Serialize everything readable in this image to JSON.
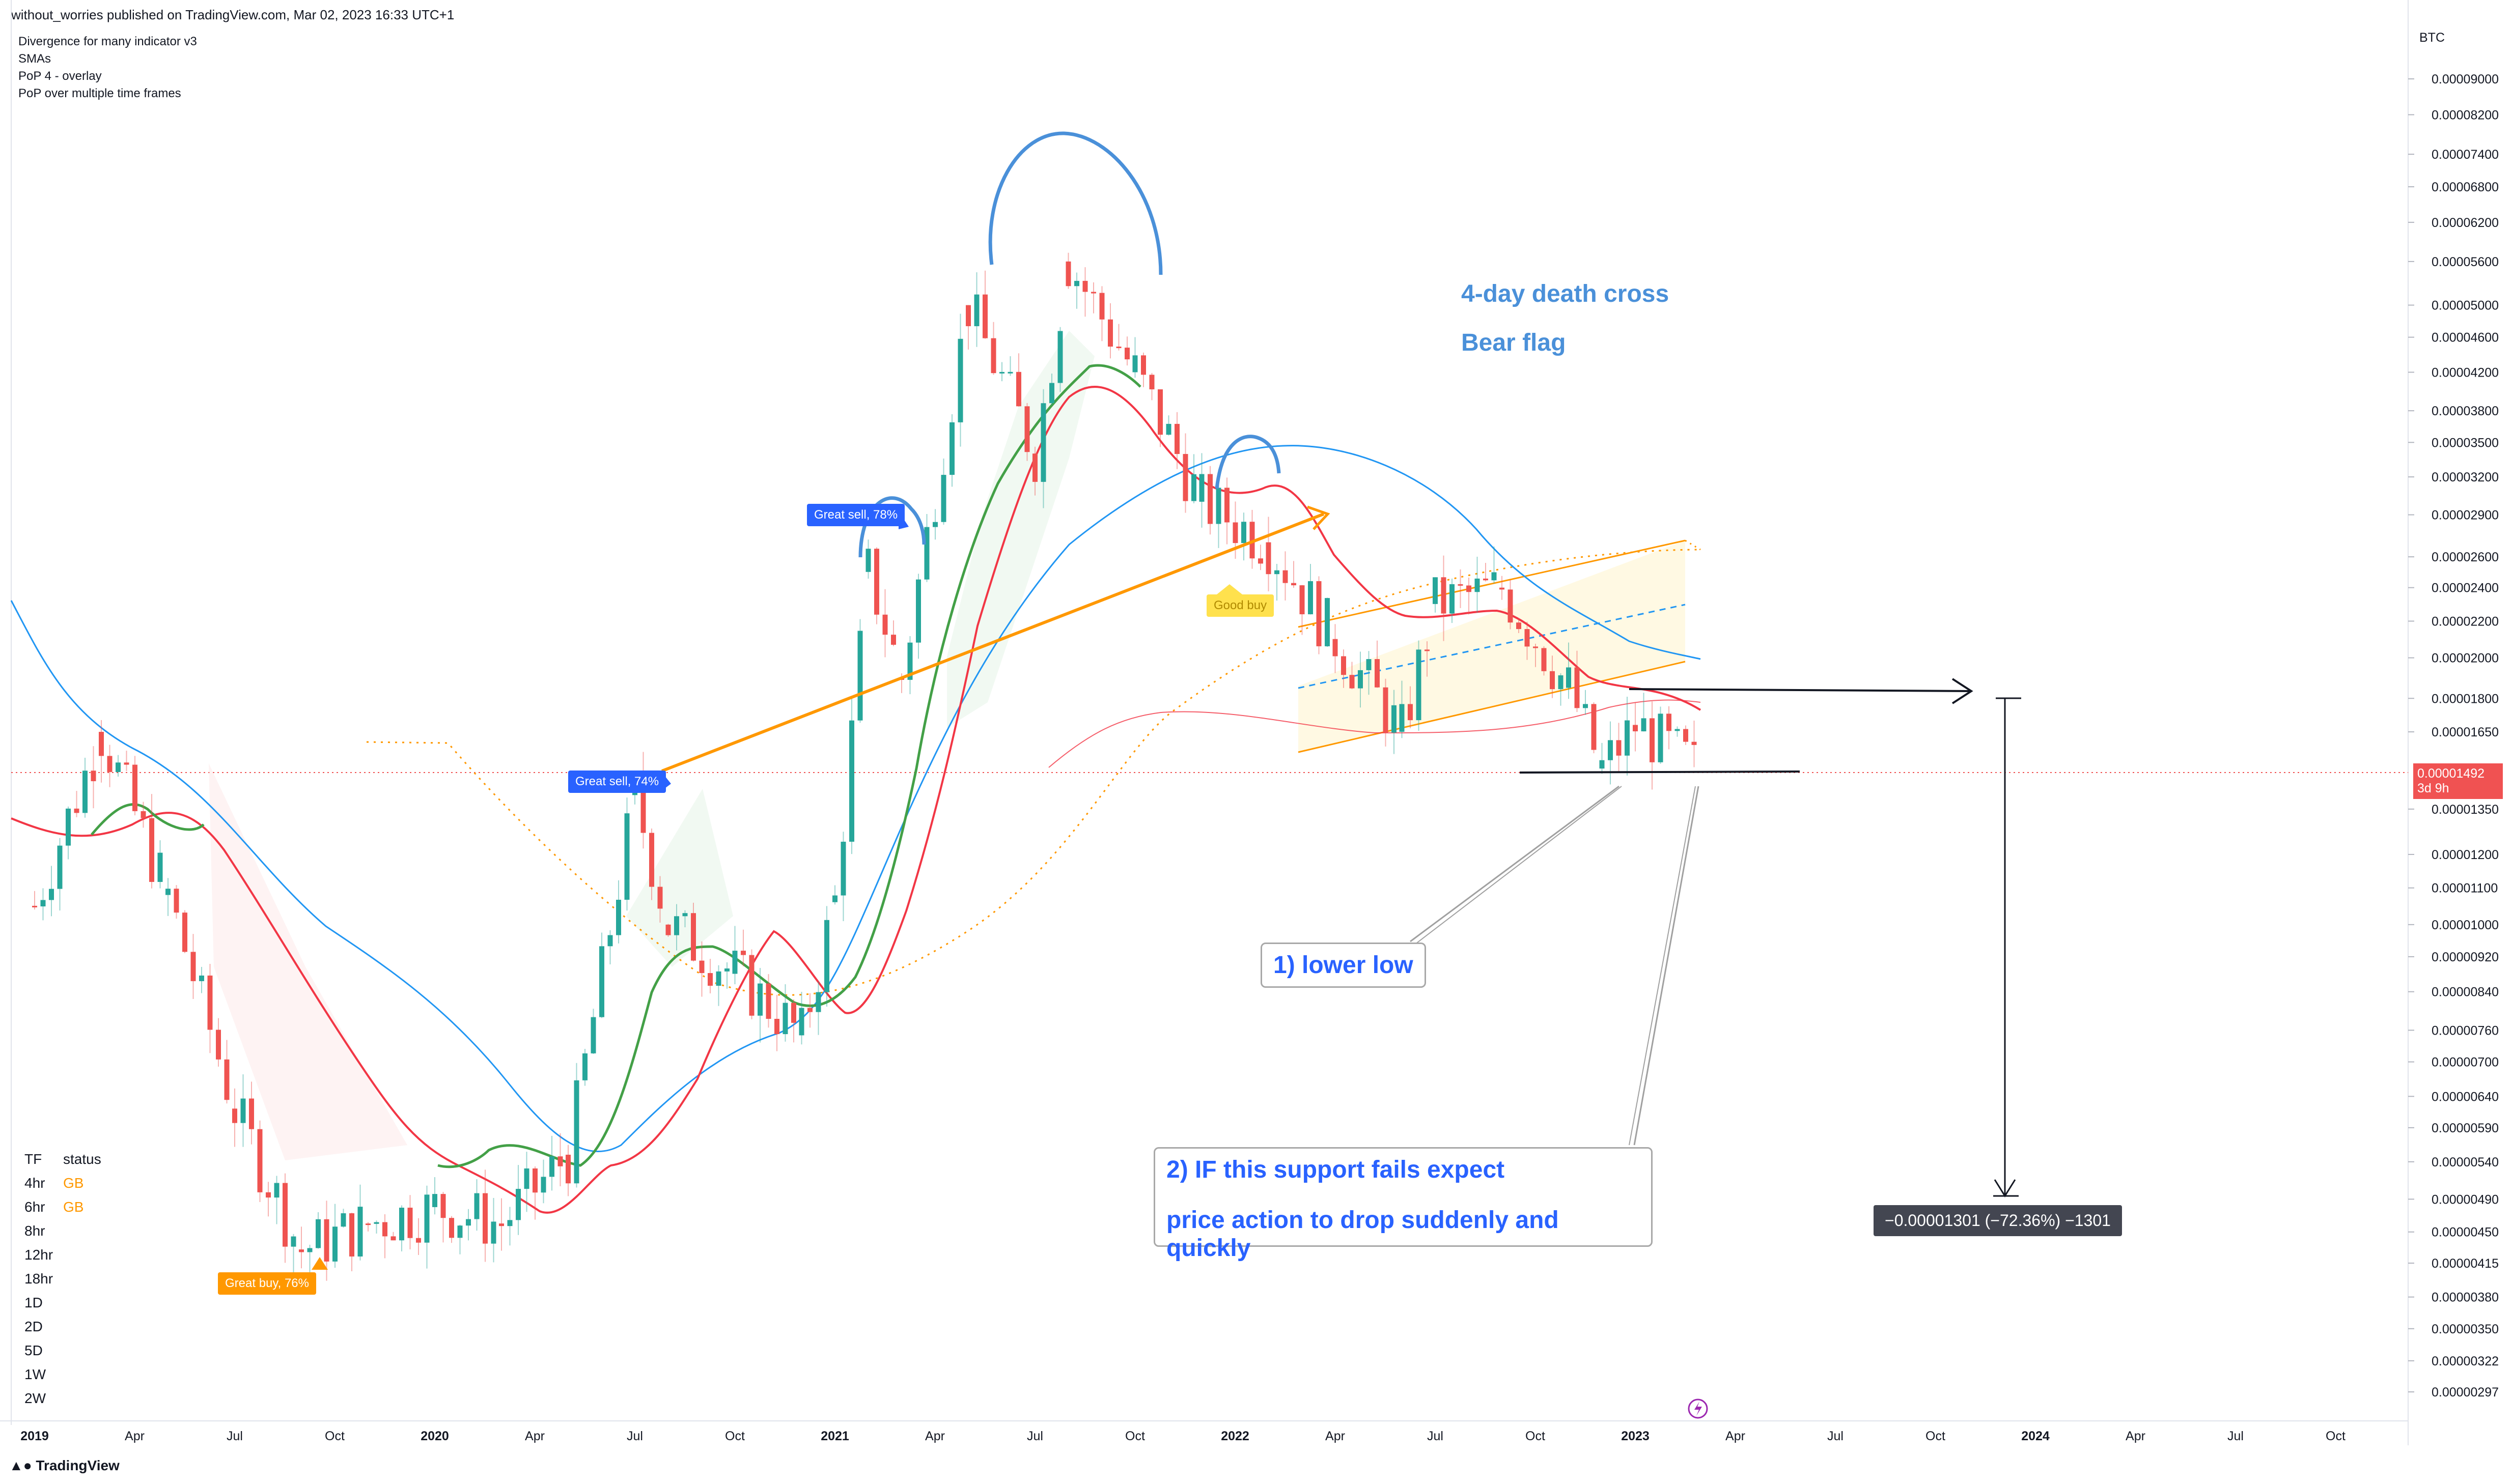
{
  "header": {
    "publisher_line": "without_worries published on TradingView.com, Mar 02, 2023 16:33 UTC+1"
  },
  "indicators": [
    "Divergence for many indicator v3",
    "SMAs",
    "PoP 4 - overlay",
    "PoP over multiple time frames"
  ],
  "price_axis": {
    "currency": "BTC",
    "ticks": [
      "0.00009000",
      "0.00008200",
      "0.00007400",
      "0.00006800",
      "0.00006200",
      "0.00005600",
      "0.00005000",
      "0.00004600",
      "0.00004200",
      "0.00003800",
      "0.00003500",
      "0.00003200",
      "0.00002900",
      "0.00002600",
      "0.00002400",
      "0.00002200",
      "0.00002000",
      "0.00001800",
      "0.00001650",
      "0.00001350",
      "0.00001200",
      "0.00001100",
      "0.00001000",
      "0.00000920",
      "0.00000840",
      "0.00000760",
      "0.00000700",
      "0.00000640",
      "0.00000590",
      "0.00000540",
      "0.00000490",
      "0.00000450",
      "0.00000415",
      "0.00000380",
      "0.00000350",
      "0.00000322",
      "0.00000297"
    ],
    "current_price": "0.00001492",
    "countdown": "3d 9h"
  },
  "time_axis": {
    "labels": [
      {
        "text": "2019",
        "bold": true
      },
      {
        "text": "Apr",
        "bold": false
      },
      {
        "text": "Jul",
        "bold": false
      },
      {
        "text": "Oct",
        "bold": false
      },
      {
        "text": "2020",
        "bold": true
      },
      {
        "text": "Apr",
        "bold": false
      },
      {
        "text": "Jul",
        "bold": false
      },
      {
        "text": "Oct",
        "bold": false
      },
      {
        "text": "2021",
        "bold": true
      },
      {
        "text": "Apr",
        "bold": false
      },
      {
        "text": "Jul",
        "bold": false
      },
      {
        "text": "Oct",
        "bold": false
      },
      {
        "text": "2022",
        "bold": true
      },
      {
        "text": "Apr",
        "bold": false
      },
      {
        "text": "Jul",
        "bold": false
      },
      {
        "text": "Oct",
        "bold": false
      },
      {
        "text": "2023",
        "bold": true
      },
      {
        "text": "Apr",
        "bold": false
      },
      {
        "text": "Jul",
        "bold": false
      },
      {
        "text": "Oct",
        "bold": false
      },
      {
        "text": "2024",
        "bold": true
      },
      {
        "text": "Apr",
        "bold": false
      },
      {
        "text": "Jul",
        "bold": false
      },
      {
        "text": "Oct",
        "bold": false
      }
    ]
  },
  "annotations": {
    "death_cross": "4-day death cross",
    "bear_flag": "Bear flag",
    "lower_low": "1) lower low",
    "support_fail_1": "2) IF this support fails expect",
    "support_fail_2": "price action to drop suddenly and quickly",
    "measure": "−0.00001301 (−72.36%) −1301"
  },
  "signals": {
    "great_sell_1": "Great sell, 78%",
    "great_sell_2": "Great sell, 74%",
    "great_buy": "Great buy, 76%",
    "good_buy": "Good buy"
  },
  "tf_table": {
    "header": [
      "TF",
      "status"
    ],
    "rows": [
      {
        "tf": "4hr",
        "status": "GB"
      },
      {
        "tf": "6hr",
        "status": "GB"
      },
      {
        "tf": "8hr",
        "status": ""
      },
      {
        "tf": "12hr",
        "status": ""
      },
      {
        "tf": "18hr",
        "status": ""
      },
      {
        "tf": "1D",
        "status": ""
      },
      {
        "tf": "2D",
        "status": ""
      },
      {
        "tf": "5D",
        "status": ""
      },
      {
        "tf": "1W",
        "status": ""
      },
      {
        "tf": "2W",
        "status": ""
      }
    ]
  },
  "footer": {
    "brand": "TradingView"
  },
  "colors": {
    "up": "#26a69a",
    "down": "#ef5350",
    "sma_red": "#f23645",
    "sma_green": "#43a047",
    "sma_blue": "#2196f3",
    "orange": "#ff9800",
    "annotation_blue": "#4a90d9"
  },
  "chart_data": {
    "type": "candlestick",
    "title": "",
    "scale": "log",
    "ylim": [
      2.97e-06,
      9e-05
    ],
    "series": [
      {
        "name": "price (approx. weekly closes)",
        "values": [
          {
            "date": "2019-01",
            "close": 1.05e-05
          },
          {
            "date": "2019-03",
            "close": 1.65e-05
          },
          {
            "date": "2019-05",
            "close": 1.08e-05
          },
          {
            "date": "2019-07",
            "close": 6.2e-06
          },
          {
            "date": "2019-09",
            "close": 4.3e-06
          },
          {
            "date": "2019-11",
            "close": 4.6e-06
          },
          {
            "date": "2020-01",
            "close": 4.8e-06
          },
          {
            "date": "2020-03",
            "close": 4.6e-06
          },
          {
            "date": "2020-05",
            "close": 5.5e-06
          },
          {
            "date": "2020-07",
            "close": 1.4e-05
          },
          {
            "date": "2020-08",
            "close": 1e-05
          },
          {
            "date": "2020-10",
            "close": 8.8e-06
          },
          {
            "date": "2020-12",
            "close": 7.5e-06
          },
          {
            "date": "2021-01",
            "close": 1.06e-05
          },
          {
            "date": "2021-02",
            "close": 2.5e-05
          },
          {
            "date": "2021-03",
            "close": 1.9e-05
          },
          {
            "date": "2021-05",
            "close": 5e-05
          },
          {
            "date": "2021-07",
            "close": 3.4e-05
          },
          {
            "date": "2021-08",
            "close": 5.6e-05
          },
          {
            "date": "2021-10",
            "close": 4.2e-05
          },
          {
            "date": "2021-12",
            "close": 3e-05
          },
          {
            "date": "2022-02",
            "close": 2.7e-05
          },
          {
            "date": "2022-04",
            "close": 2.1e-05
          },
          {
            "date": "2022-06",
            "close": 1.65e-05
          },
          {
            "date": "2022-07",
            "close": 2.3e-05
          },
          {
            "date": "2022-09",
            "close": 2.4e-05
          },
          {
            "date": "2022-11",
            "close": 1.85e-05
          },
          {
            "date": "2022-12",
            "close": 1.5e-05
          },
          {
            "date": "2023-01",
            "close": 1.68e-05
          },
          {
            "date": "2023-03",
            "close": 1.49e-05
          }
        ]
      }
    ]
  }
}
